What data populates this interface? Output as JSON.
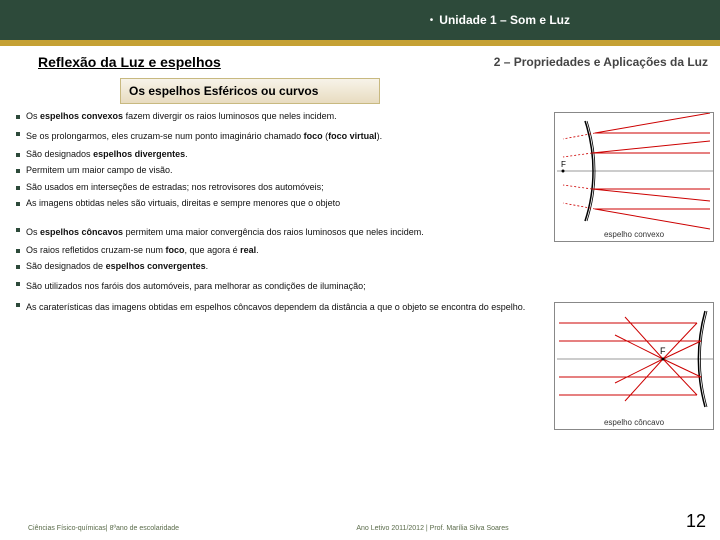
{
  "header": {
    "unit": "Unidade 1 – Som e Luz",
    "bg_color": "#2d4a3a",
    "gold_color": "#c5a134"
  },
  "subheader": {
    "left": "Reflexão da Luz e espelhos",
    "right": "2 – Propriedades e Aplicações da Luz"
  },
  "topic": "Os espelhos Esféricos ou curvos",
  "bullets": [
    {
      "html": "Os <strong>espelhos convexos</strong> fazem divergir os raios luminosos que neles incidem.",
      "indent": false
    },
    {
      "html": "Se os prolongarmos, eles cruzam-se num ponto imaginário chamado <strong>foco</strong> (<strong>foco virtual</strong>).",
      "indent": false,
      "wrap": true
    },
    {
      "html": "São designados <strong>espelhos divergentes</strong>.",
      "indent": false
    },
    {
      "html": "Permitem um maior campo de visão.",
      "indent": false
    },
    {
      "html": "São usados em interseções de estradas; nos retrovisores dos automóveis;",
      "indent": false
    },
    {
      "html": "As imagens obtidas neles são virtuais, direitas e sempre menores que o objeto",
      "indent": false
    },
    {
      "html": "Os <strong>espelhos côncavos</strong> permitem uma maior convergência dos raios luminosos que neles incidem.",
      "indent": false,
      "wrap": true,
      "gap": true
    },
    {
      "html": "Os raios refletidos cruzam-se num <strong>foco</strong>, que agora é <strong>real</strong>.",
      "indent": false
    },
    {
      "html": "São designados de <strong>espelhos convergentes</strong>.",
      "indent": false
    },
    {
      "html": "São utilizados nos faróis dos automóveis, para melhorar as condições de iluminação;",
      "indent": false,
      "wrap": true
    },
    {
      "html": "As caraterísticas das imagens obtidas em espelhos côncavos dependem da distância a que o objeto se encontra do espelho.",
      "indent": false,
      "wrap": true
    }
  ],
  "diagrams": {
    "convex": {
      "label": "espelho convexo",
      "arc_color": "#000000",
      "ray_color": "#cc0000",
      "axis_color": "#333333",
      "focus_label": "F"
    },
    "concave": {
      "label": "espelho côncavo",
      "arc_color": "#000000",
      "ray_color": "#cc0000",
      "axis_color": "#333333",
      "focus_label": "F"
    }
  },
  "footer": {
    "left": "Ciências Físico-químicas| 8ºano de escolaridade",
    "right": "Ano Letivo 2011/2012 | Prof. Marília Silva Soares",
    "page": "12"
  }
}
